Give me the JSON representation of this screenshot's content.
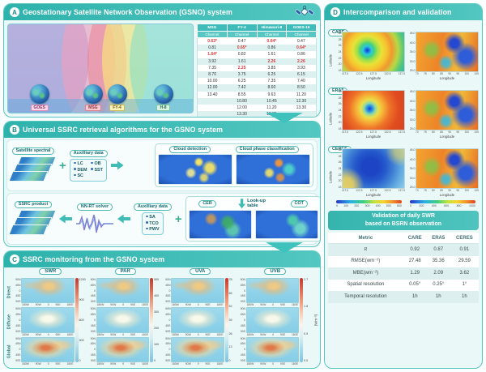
{
  "panelA": {
    "badge": "A",
    "title": "Geostationary Satellite Network Observation (GSNO) system",
    "satellite_labels": [
      "GOES",
      "MSG",
      "FY-4",
      "H-8"
    ],
    "table": {
      "columns": [
        "MSG",
        "FY-4",
        "Himawari-8",
        "GOES-16"
      ],
      "subheader": "Channel",
      "rows": [
        [
          "0.63*",
          "0.47",
          "0.64*",
          "0.47"
        ],
        [
          "0.81",
          "0.65*",
          "0.86",
          "0.64*"
        ],
        [
          "1.64*",
          "0.82",
          "1.61",
          "0.86"
        ],
        [
          "3.92",
          "1.61",
          "2.26",
          "2.26"
        ],
        [
          "7.35",
          "2.25",
          "3.85",
          "3.93"
        ],
        [
          "8.70",
          "3.75",
          "6.25",
          "6.15"
        ],
        [
          "10.00",
          "6.25",
          "7.35",
          "7.40"
        ],
        [
          "12.00",
          "7.42",
          "8.60",
          "8.50"
        ],
        [
          "13.40",
          "8.55",
          "9.63",
          "11.20"
        ],
        [
          "",
          "10.80",
          "10.45",
          "12.30"
        ],
        [
          "",
          "12.00",
          "11.20",
          "13.30"
        ],
        [
          "",
          "13.30",
          "12.35",
          ""
        ],
        [
          "",
          "",
          "13.30",
          ""
        ]
      ],
      "red_values": [
        "0.63*",
        "1.64*",
        "0.65*",
        "2.25",
        "0.64*",
        "2.26"
      ],
      "red_color": "#d8383a"
    }
  },
  "panelB": {
    "badge": "B",
    "title": "Universal SSRC retrieval algorithms for the GSNO system",
    "satellite_spectral_label": "Satellite spectral",
    "aux1": {
      "label": "Auxilliary data",
      "cols": [
        [
          "LC",
          "DEM",
          "SC"
        ],
        [
          "OB",
          "SST"
        ]
      ]
    },
    "cloud_detection_label": "Cloud detection",
    "cloud_phase_label": "Cloud phase classification",
    "ssrc_product_label": "SSRC product",
    "nn_rt_label": "NN-RT solver",
    "aux2": {
      "label": "Auxilliary data",
      "cols": [
        [
          "SA",
          "TCO",
          "PWV"
        ]
      ]
    },
    "cer_label": "CER",
    "cot_label": "COT",
    "lookup_label": "Look-up table"
  },
  "panelC": {
    "badge": "C",
    "title": "SSRC monitoring from the GSNO system",
    "row_labels": [
      "Direct",
      "Diffuse",
      "Global"
    ],
    "columns": [
      {
        "label": "SWR",
        "cbar_ticks": [
          "1200",
          "900",
          "600",
          "300",
          "0"
        ]
      },
      {
        "label": "PAR",
        "cbar_ticks": [
          "500",
          "400",
          "300",
          "200",
          "100",
          "0"
        ]
      },
      {
        "label": "UVA",
        "cbar_ticks": [
          "78",
          "65",
          "52",
          "39",
          "26",
          "13",
          "0"
        ]
      },
      {
        "label": "UVB",
        "cbar_ticks": [
          "2.7",
          "1.8",
          "0.9",
          "0.0"
        ]
      }
    ],
    "map_yticks": [
      "90N",
      "45N",
      "0",
      "45S",
      "90S"
    ],
    "map_xticks": [
      "180W",
      "90W",
      "0",
      "90E",
      "180E"
    ],
    "unit_label": "(Wm⁻²)"
  },
  "panelD": {
    "badge": "D",
    "title": "Intercomparison and validation",
    "sections": [
      {
        "name": "CARE"
      },
      {
        "name": "ERA5"
      },
      {
        "name": "CERES"
      }
    ],
    "left_map": {
      "ylabel": "Latitude",
      "xlabel": "Longitude",
      "yticks": [
        "30",
        "28",
        "26",
        "24",
        "22",
        "20",
        "18"
      ],
      "xticks": [
        "117.5",
        "122.5",
        "127.5",
        "132.5",
        "137.5"
      ]
    },
    "right_map": {
      "xlabel": "Longitude",
      "yticks": [
        "45.0",
        "40.0",
        "35.0",
        "30.0",
        "25.0"
      ],
      "xticks": [
        "70",
        "75",
        "80",
        "85",
        "90",
        "95",
        "100",
        "105"
      ]
    },
    "colorbar_left_ticks": [
      "0",
      "100",
      "200",
      "300",
      "400",
      "500",
      "600"
    ],
    "colorbar_right_ticks": [
      "0",
      "200",
      "400",
      "600",
      "800",
      "1000"
    ],
    "validation_table": {
      "header_line1": "Validation of daily SWR",
      "header_line2": "based on BSRN observation",
      "columns": [
        "Metric",
        "CARE",
        "ERA5",
        "CERES"
      ],
      "rows": [
        {
          "metric": "R",
          "italic": true,
          "values": [
            "0.92",
            "0.87",
            "0.91"
          ]
        },
        {
          "metric": "RMSE(wm⁻²)",
          "values": [
            "27.48",
            "35.36",
            "29.59"
          ]
        },
        {
          "metric": "MBE(wm⁻²)",
          "values": [
            "1.29",
            "2.09",
            "3.62"
          ]
        },
        {
          "metric": "Spatial resolution",
          "values": [
            "0.05°",
            "0.25°",
            "1°"
          ]
        },
        {
          "metric": "Temporal resolution",
          "values": [
            "1h",
            "1h",
            "1h"
          ]
        }
      ]
    }
  }
}
